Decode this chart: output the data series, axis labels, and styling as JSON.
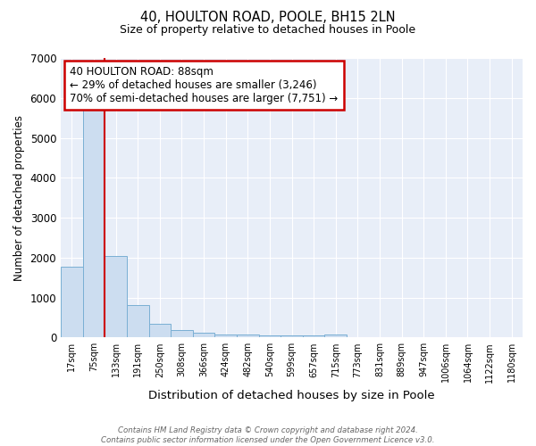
{
  "title": "40, HOULTON ROAD, POOLE, BH15 2LN",
  "subtitle": "Size of property relative to detached houses in Poole",
  "xlabel": "Distribution of detached houses by size in Poole",
  "ylabel": "Number of detached properties",
  "categories": [
    "17sqm",
    "75sqm",
    "133sqm",
    "191sqm",
    "250sqm",
    "308sqm",
    "366sqm",
    "424sqm",
    "482sqm",
    "540sqm",
    "599sqm",
    "657sqm",
    "715sqm",
    "773sqm",
    "831sqm",
    "889sqm",
    "947sqm",
    "1006sqm",
    "1064sqm",
    "1122sqm",
    "1180sqm"
  ],
  "values": [
    1780,
    5750,
    2050,
    810,
    350,
    190,
    115,
    80,
    65,
    50,
    45,
    45,
    75,
    0,
    0,
    0,
    0,
    0,
    0,
    0,
    0
  ],
  "bar_color": "#ccddf0",
  "bar_edge_color": "#7aafd4",
  "annotation_text": "40 HOULTON ROAD: 88sqm\n← 29% of detached houses are smaller (3,246)\n70% of semi-detached houses are larger (7,751) →",
  "annotation_box_color": "#ffffff",
  "annotation_box_edge_color": "#cc0000",
  "vline_color": "#cc0000",
  "vline_x_index": 1,
  "ylim": [
    0,
    7000
  ],
  "yticks": [
    0,
    1000,
    2000,
    3000,
    4000,
    5000,
    6000,
    7000
  ],
  "background_color": "#e8eef8",
  "grid_color": "#ffffff",
  "footer_line1": "Contains HM Land Registry data © Crown copyright and database right 2024.",
  "footer_line2": "Contains public sector information licensed under the Open Government Licence v3.0."
}
